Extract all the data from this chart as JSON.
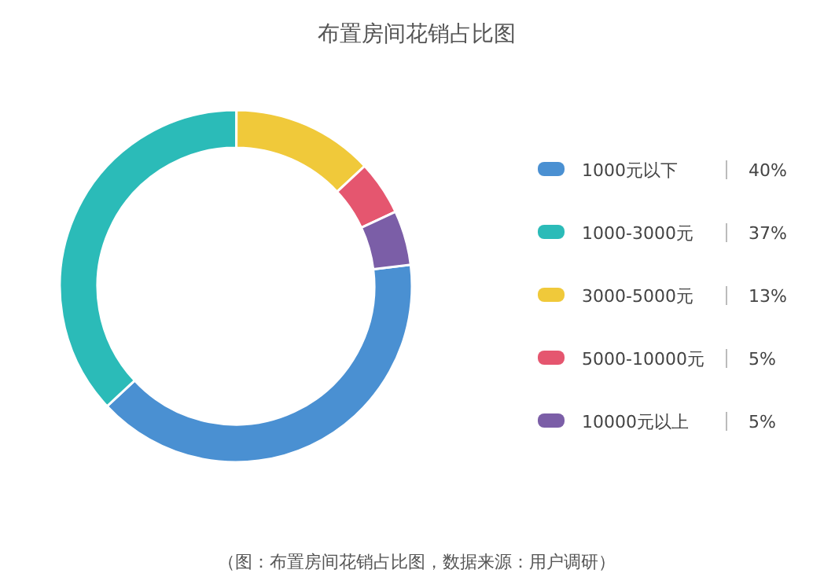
{
  "chart_data": {
    "type": "donut",
    "title": "布置房间花销占比图",
    "categories": [
      "1000元以下",
      "1000-3000元",
      "3000-5000元",
      "5000-10000元",
      "10000元以上"
    ],
    "values": [
      40,
      37,
      13,
      5,
      5
    ],
    "value_labels": [
      "40%",
      "37%",
      "13%",
      "5%",
      "5%"
    ],
    "colors": [
      "#4a90d2",
      "#2bbbb8",
      "#f0c93a",
      "#e5566f",
      "#7b5ea7"
    ],
    "legend": "right",
    "annotations": [
      "（图：布置房间花销占比图，数据来源：用户调研）"
    ]
  }
}
